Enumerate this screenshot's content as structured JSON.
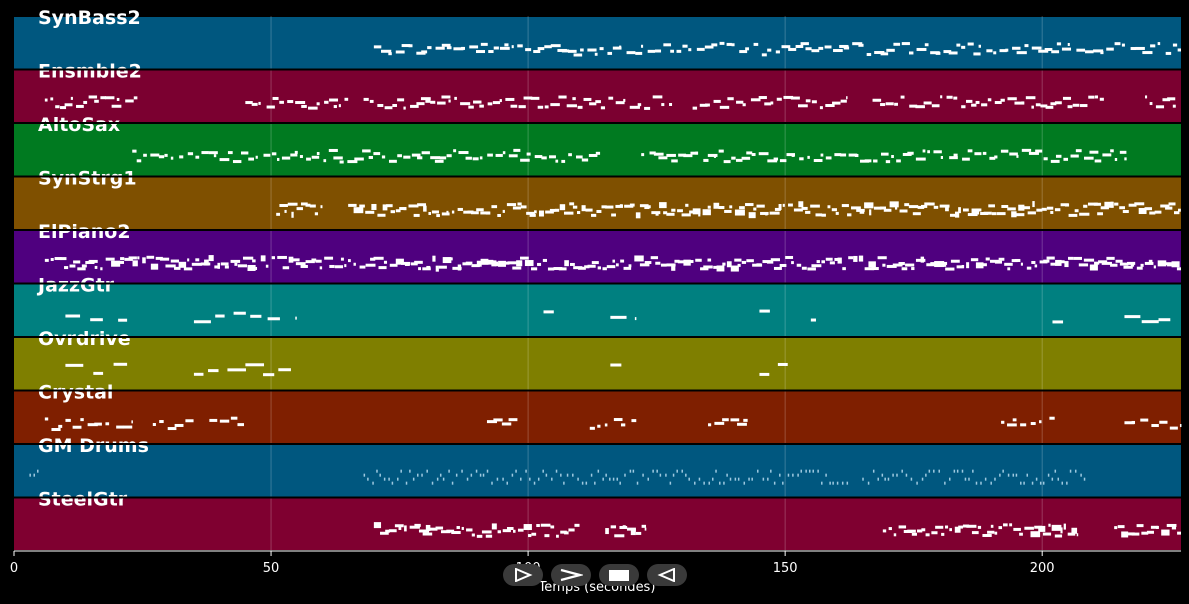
{
  "chart_data": {
    "type": "piano-roll",
    "xlabel": "Temps (secondes)",
    "xlim": [
      0,
      227
    ],
    "xticks": [
      0,
      50,
      100,
      150,
      200
    ],
    "grid": true,
    "tracks": [
      {
        "name": "SynBass2",
        "color": "#00577f",
        "density": "medium",
        "segments": [
          [
            70,
            227
          ]
        ]
      },
      {
        "name": "Ensmble2",
        "color": "#7b0030",
        "density": "medium",
        "segments": [
          [
            6,
            24
          ],
          [
            45,
            65
          ],
          [
            68,
            128
          ],
          [
            132,
            162
          ],
          [
            167,
            212
          ],
          [
            220,
            227
          ]
        ]
      },
      {
        "name": "AltoSax",
        "color": "#007a20",
        "density": "medium",
        "segments": [
          [
            23,
            114
          ],
          [
            122,
            217
          ]
        ]
      },
      {
        "name": "SynStrg1",
        "color": "#7f5000",
        "density": "high",
        "segments": [
          [
            51,
            60
          ],
          [
            65,
            227
          ]
        ]
      },
      {
        "name": "ElPiano2",
        "color": "#4f007f",
        "density": "high",
        "segments": [
          [
            6,
            47
          ],
          [
            48,
            227
          ]
        ]
      },
      {
        "name": "JazzGtr",
        "color": "#008080",
        "density": "sparse",
        "segments": [
          [
            10,
            22
          ],
          [
            35,
            55
          ],
          [
            103,
            105
          ],
          [
            116,
            121
          ],
          [
            145,
            150
          ],
          [
            155,
            156
          ],
          [
            202,
            206
          ],
          [
            216,
            225
          ]
        ]
      },
      {
        "name": "Ovrdrive",
        "color": "#7f7f00",
        "density": "sparse",
        "segments": [
          [
            10,
            22
          ],
          [
            35,
            55
          ],
          [
            116,
            121
          ],
          [
            145,
            152
          ]
        ]
      },
      {
        "name": "Crystal",
        "color": "#7f1f00",
        "density": "low",
        "segments": [
          [
            6,
            23
          ],
          [
            27,
            35
          ],
          [
            38,
            45
          ],
          [
            92,
            98
          ],
          [
            112,
            122
          ],
          [
            135,
            143
          ],
          [
            192,
            203
          ],
          [
            216,
            227
          ]
        ]
      },
      {
        "name": "GM Drums",
        "color": "#00577f",
        "density": "drums",
        "segments": [
          [
            3,
            5
          ],
          [
            68,
            162
          ],
          [
            165,
            209
          ]
        ]
      },
      {
        "name": "SteelGtr",
        "color": "#7f0030",
        "density": "high",
        "segments": [
          [
            70,
            110
          ],
          [
            115,
            123
          ],
          [
            169,
            207
          ],
          [
            214,
            227
          ]
        ]
      }
    ]
  },
  "controls": [
    {
      "name": "play-button",
      "icon": "play-icon"
    },
    {
      "name": "forward-button",
      "icon": "chevron-right-icon"
    },
    {
      "name": "stop-button",
      "icon": "stop-icon"
    },
    {
      "name": "rewind-button",
      "icon": "rewind-icon"
    }
  ]
}
